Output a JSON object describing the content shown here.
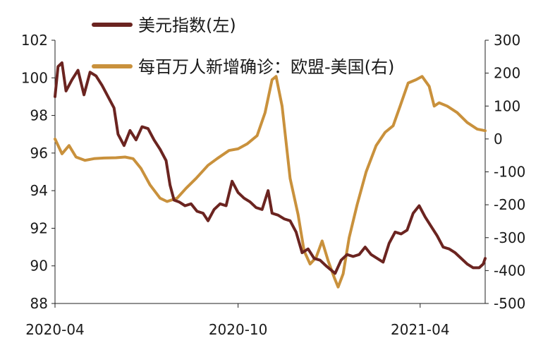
{
  "chart_data": {
    "type": "line",
    "x_labels": [
      "2020-04",
      "2020-10",
      "2021-04"
    ],
    "y_left": {
      "min": 88,
      "max": 102,
      "ticks": [
        88,
        90,
        92,
        94,
        96,
        98,
        100,
        102
      ]
    },
    "y_right": {
      "min": -500,
      "max": 300,
      "ticks": [
        -500,
        -400,
        -300,
        -200,
        -100,
        0,
        100,
        200,
        300
      ]
    },
    "grid": false,
    "legend_placement": "top",
    "series": [
      {
        "name": "美元指数(左)",
        "axis": "left",
        "color": "#6b2420",
        "points": [
          [
            "2020-04-01",
            99.0
          ],
          [
            "2020-04-04",
            100.6
          ],
          [
            "2020-04-08",
            100.8
          ],
          [
            "2020-04-12",
            99.3
          ],
          [
            "2020-04-18",
            99.9
          ],
          [
            "2020-04-24",
            100.4
          ],
          [
            "2020-04-30",
            99.1
          ],
          [
            "2020-05-06",
            100.3
          ],
          [
            "2020-05-12",
            100.1
          ],
          [
            "2020-05-18",
            99.6
          ],
          [
            "2020-05-24",
            99.0
          ],
          [
            "2020-05-30",
            98.4
          ],
          [
            "2020-06-03",
            97.0
          ],
          [
            "2020-06-09",
            96.4
          ],
          [
            "2020-06-15",
            97.2
          ],
          [
            "2020-06-21",
            96.7
          ],
          [
            "2020-06-27",
            97.4
          ],
          [
            "2020-07-03",
            97.3
          ],
          [
            "2020-07-09",
            96.7
          ],
          [
            "2020-07-15",
            96.2
          ],
          [
            "2020-07-21",
            95.6
          ],
          [
            "2020-07-25",
            94.3
          ],
          [
            "2020-07-29",
            93.5
          ],
          [
            "2020-08-03",
            93.4
          ],
          [
            "2020-08-09",
            93.2
          ],
          [
            "2020-08-15",
            93.3
          ],
          [
            "2020-08-21",
            92.9
          ],
          [
            "2020-08-27",
            92.8
          ],
          [
            "2020-09-01",
            92.4
          ],
          [
            "2020-09-07",
            93.0
          ],
          [
            "2020-09-13",
            93.3
          ],
          [
            "2020-09-19",
            93.2
          ],
          [
            "2020-09-25",
            94.5
          ],
          [
            "2020-10-01",
            93.9
          ],
          [
            "2020-10-07",
            93.6
          ],
          [
            "2020-10-13",
            93.4
          ],
          [
            "2020-10-19",
            93.1
          ],
          [
            "2020-10-25",
            93.0
          ],
          [
            "2020-10-31",
            94.0
          ],
          [
            "2020-11-04",
            92.8
          ],
          [
            "2020-11-10",
            92.7
          ],
          [
            "2020-11-16",
            92.5
          ],
          [
            "2020-11-22",
            92.4
          ],
          [
            "2020-11-28",
            91.8
          ],
          [
            "2020-12-04",
            90.7
          ],
          [
            "2020-12-10",
            90.9
          ],
          [
            "2020-12-16",
            90.4
          ],
          [
            "2020-12-22",
            90.3
          ],
          [
            "2020-12-28",
            90.0
          ],
          [
            "2021-01-06",
            89.6
          ],
          [
            "2021-01-12",
            90.3
          ],
          [
            "2021-01-18",
            90.6
          ],
          [
            "2021-01-24",
            90.5
          ],
          [
            "2021-01-30",
            90.6
          ],
          [
            "2021-02-05",
            91.0
          ],
          [
            "2021-02-11",
            90.6
          ],
          [
            "2021-02-17",
            90.4
          ],
          [
            "2021-02-23",
            90.2
          ],
          [
            "2021-03-01",
            91.2
          ],
          [
            "2021-03-07",
            91.8
          ],
          [
            "2021-03-13",
            91.7
          ],
          [
            "2021-03-19",
            91.9
          ],
          [
            "2021-03-25",
            92.8
          ],
          [
            "2021-03-31",
            93.2
          ],
          [
            "2021-04-06",
            92.6
          ],
          [
            "2021-04-12",
            92.1
          ],
          [
            "2021-04-18",
            91.6
          ],
          [
            "2021-04-24",
            91.0
          ],
          [
            "2021-04-30",
            90.9
          ],
          [
            "2021-05-06",
            90.7
          ],
          [
            "2021-05-12",
            90.4
          ],
          [
            "2021-05-18",
            90.1
          ],
          [
            "2021-05-24",
            89.9
          ],
          [
            "2021-05-30",
            89.9
          ],
          [
            "2021-06-03",
            90.1
          ],
          [
            "2021-06-05",
            90.4
          ]
        ]
      },
      {
        "name": "每百万人新增确诊：欧盟-美国(右)",
        "axis": "right",
        "color": "#c9913c",
        "points": [
          [
            "2020-04-01",
            0
          ],
          [
            "2020-04-08",
            -45
          ],
          [
            "2020-04-15",
            -20
          ],
          [
            "2020-04-22",
            -55
          ],
          [
            "2020-05-01",
            -65
          ],
          [
            "2020-05-10",
            -60
          ],
          [
            "2020-05-20",
            -58
          ],
          [
            "2020-06-01",
            -57
          ],
          [
            "2020-06-10",
            -55
          ],
          [
            "2020-06-18",
            -60
          ],
          [
            "2020-06-26",
            -90
          ],
          [
            "2020-07-05",
            -140
          ],
          [
            "2020-07-15",
            -180
          ],
          [
            "2020-07-22",
            -190
          ],
          [
            "2020-08-01",
            -180
          ],
          [
            "2020-08-10",
            -150
          ],
          [
            "2020-08-20",
            -120
          ],
          [
            "2020-09-01",
            -80
          ],
          [
            "2020-09-10",
            -60
          ],
          [
            "2020-09-22",
            -35
          ],
          [
            "2020-10-01",
            -30
          ],
          [
            "2020-10-10",
            -15
          ],
          [
            "2020-10-20",
            10
          ],
          [
            "2020-10-28",
            80
          ],
          [
            "2020-11-04",
            180
          ],
          [
            "2020-11-08",
            190
          ],
          [
            "2020-11-14",
            100
          ],
          [
            "2020-11-22",
            -120
          ],
          [
            "2020-11-30",
            -230
          ],
          [
            "2020-12-06",
            -340
          ],
          [
            "2020-12-12",
            -380
          ],
          [
            "2020-12-18",
            -360
          ],
          [
            "2020-12-24",
            -310
          ],
          [
            "2020-12-30",
            -370
          ],
          [
            "2021-01-05",
            -420
          ],
          [
            "2021-01-09",
            -450
          ],
          [
            "2021-01-14",
            -410
          ],
          [
            "2021-01-20",
            -300
          ],
          [
            "2021-01-28",
            -200
          ],
          [
            "2021-02-06",
            -100
          ],
          [
            "2021-02-16",
            -20
          ],
          [
            "2021-02-25",
            20
          ],
          [
            "2021-03-05",
            40
          ],
          [
            "2021-03-12",
            100
          ],
          [
            "2021-03-20",
            170
          ],
          [
            "2021-03-28",
            180
          ],
          [
            "2021-04-03",
            190
          ],
          [
            "2021-04-10",
            160
          ],
          [
            "2021-04-15",
            100
          ],
          [
            "2021-04-20",
            110
          ],
          [
            "2021-04-28",
            100
          ],
          [
            "2021-05-08",
            80
          ],
          [
            "2021-05-18",
            50
          ],
          [
            "2021-05-28",
            30
          ],
          [
            "2021-06-05",
            25
          ]
        ]
      }
    ]
  }
}
